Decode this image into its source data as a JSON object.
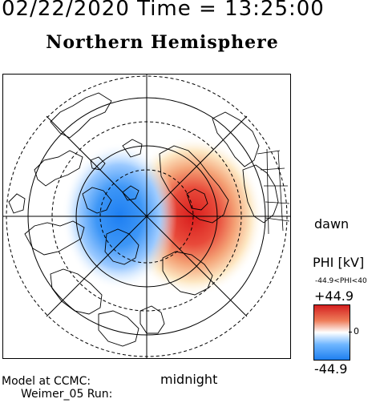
{
  "header": {
    "datetime": "02/22/2020 Time = 13:25:00",
    "hemisphere": "Northern Hemisphere"
  },
  "map": {
    "orientation_labels": {
      "right": "dawn",
      "bottom": "midnight"
    },
    "pattern": "two-cell electric potential",
    "colors": {
      "positive": "#d42020",
      "negative": "#1f7ff0",
      "zero": "#ffffff"
    }
  },
  "colorbar": {
    "title": "PHI [kV]",
    "range_text": "-44.9<PHI<40",
    "max_label": "+44.9",
    "zero_label": "0",
    "min_label": "-44.9"
  },
  "credits": {
    "line1": "Model at CCMC:",
    "line2": "Weimer_05 Run:"
  }
}
